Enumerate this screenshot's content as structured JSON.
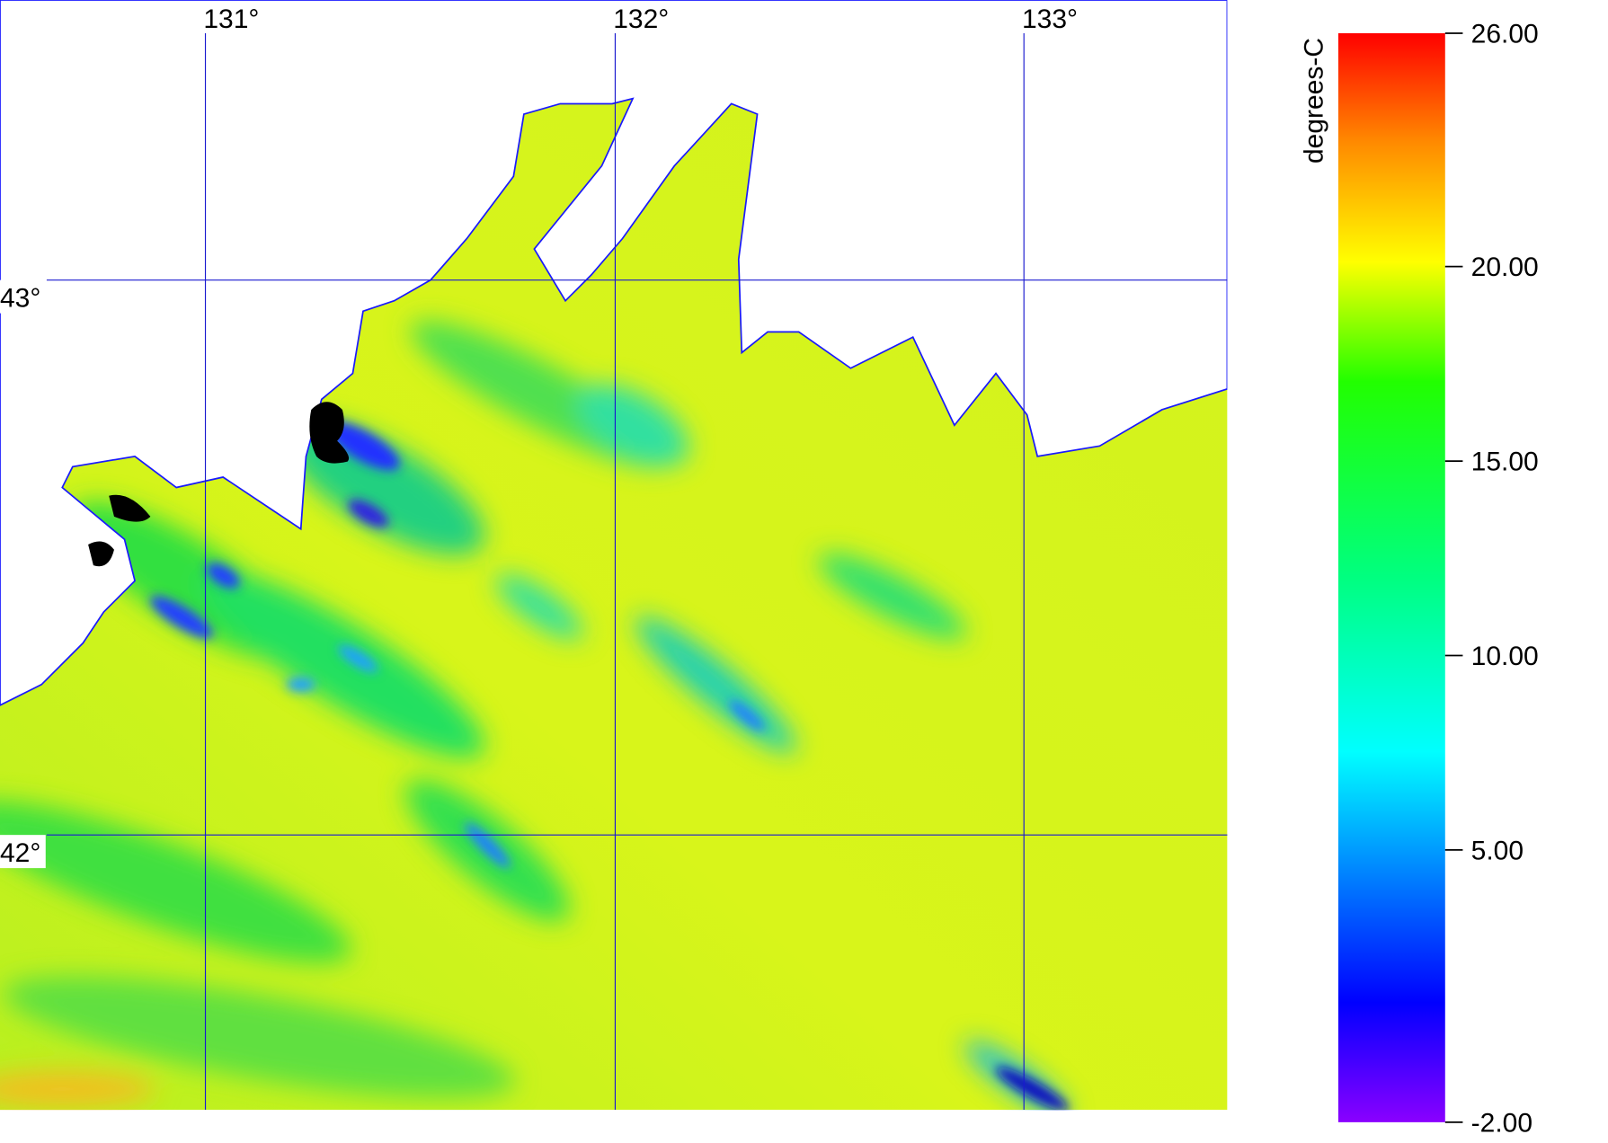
{
  "map": {
    "lon_labels": [
      "131°",
      "132°",
      "133°"
    ],
    "lat_labels": [
      "43°",
      "42°"
    ]
  },
  "colorbar": {
    "title": "degrees-C",
    "ticks": [
      {
        "value": 26,
        "label": "26.00"
      },
      {
        "value": 20,
        "label": "20.00"
      },
      {
        "value": 15,
        "label": "15.00"
      },
      {
        "value": 10,
        "label": "10.00"
      },
      {
        "value": 5,
        "label": "5.00"
      },
      {
        "value": -2,
        "label": "-2.00"
      }
    ]
  }
}
